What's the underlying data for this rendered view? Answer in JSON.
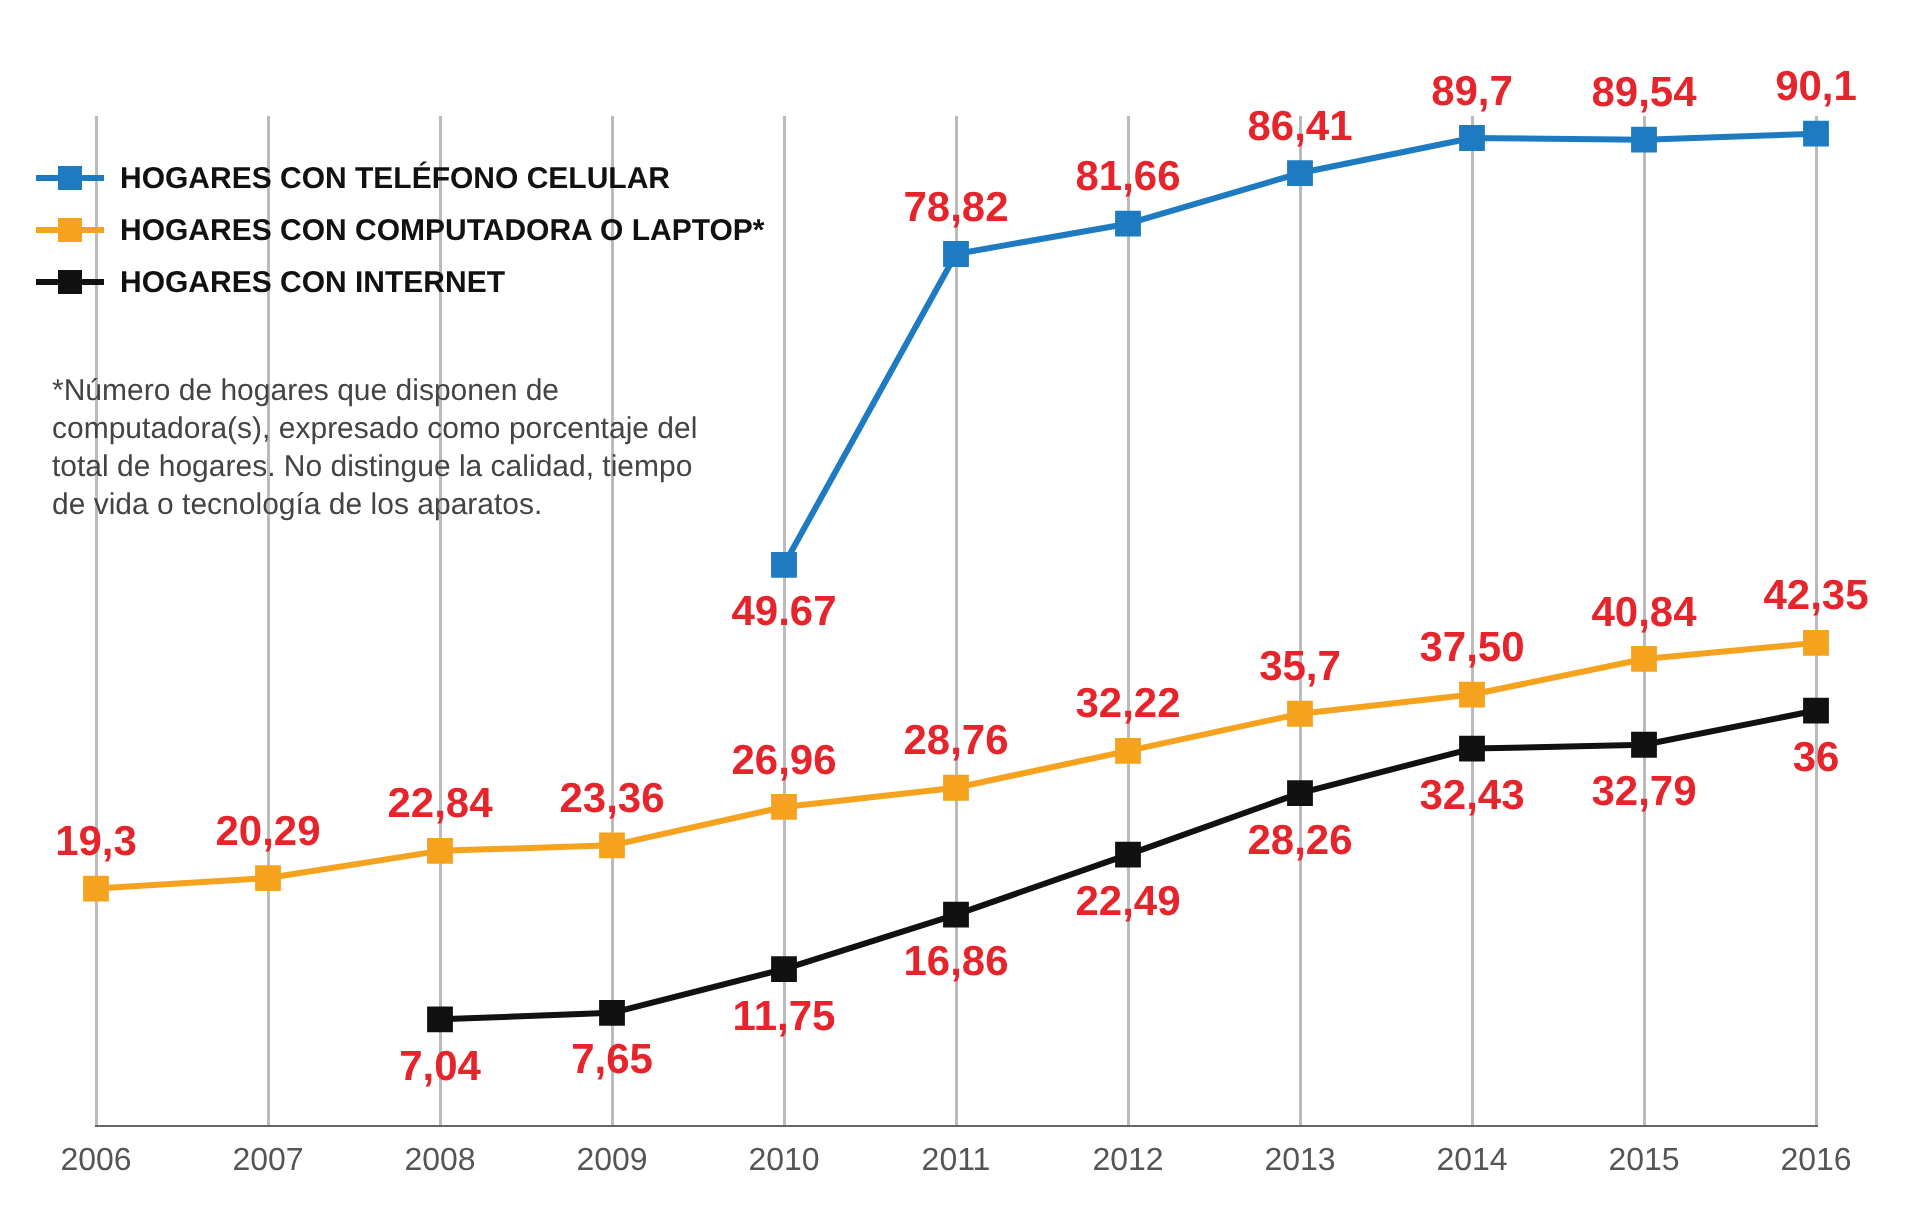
{
  "chart_data": {
    "type": "line",
    "categories": [
      "2006",
      "2007",
      "2008",
      "2009",
      "2010",
      "2011",
      "2012",
      "2013",
      "2014",
      "2015",
      "2016"
    ],
    "series": [
      {
        "name": "HOGARES CON TELÉFONO CELULAR",
        "color": "#1f7bc1",
        "values": [
          null,
          null,
          null,
          null,
          49.67,
          78.82,
          81.66,
          86.41,
          89.7,
          89.54,
          90.1
        ],
        "value_labels": [
          null,
          null,
          null,
          null,
          "49.67",
          "78,82",
          "81,66",
          "86,41",
          "89,7",
          "89,54",
          "90,1"
        ]
      },
      {
        "name": "HOGARES CON COMPUTADORA O LAPTOP*",
        "color": "#f5a21f",
        "values": [
          19.3,
          20.29,
          22.84,
          23.36,
          26.96,
          28.76,
          32.22,
          35.7,
          37.5,
          40.84,
          42.35
        ],
        "value_labels": [
          "19,3",
          "20,29",
          "22,84",
          "23,36",
          "26,96",
          "28,76",
          "32,22",
          "35,7",
          "37,50",
          "40,84",
          "42,35"
        ]
      },
      {
        "name": "HOGARES CON INTERNET",
        "color": "#111111",
        "values": [
          null,
          null,
          7.04,
          7.65,
          11.75,
          16.86,
          22.49,
          28.26,
          32.43,
          32.79,
          36
        ],
        "value_labels": [
          null,
          null,
          "7,04",
          "7,65",
          "11,75",
          "16,86",
          "22,49",
          "28,26",
          "32,43",
          "32,79",
          "36"
        ]
      }
    ],
    "annotations": [
      "*Número de hogares que disponen de computadora(s), expresado como porcentaje del total de hogares. No distingue la calidad, tiempo de vida o tecnología de los aparatos."
    ],
    "legend": "top left",
    "grid": "x",
    "marker": "square",
    "line_style": "solid"
  }
}
